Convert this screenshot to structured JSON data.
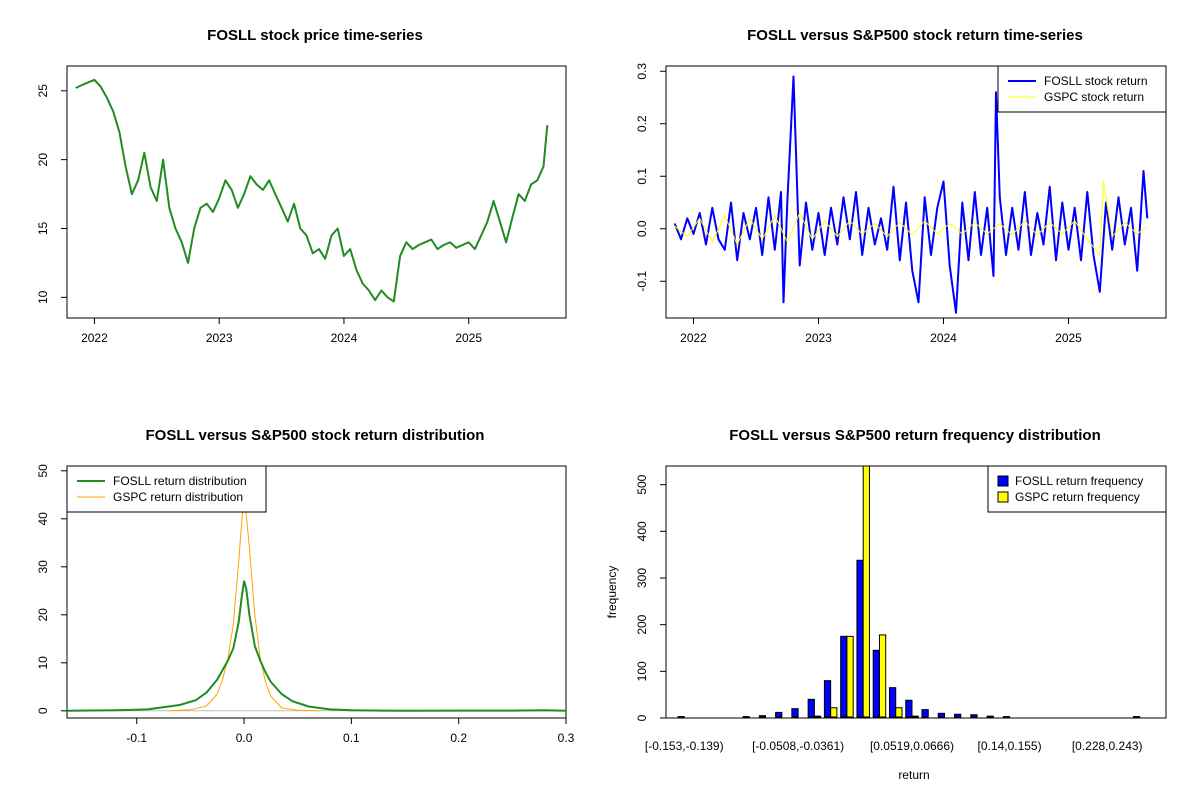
{
  "colors": {
    "fosll_price": "#228B22",
    "fosll_return": "#0000FF",
    "gspc_return": "#FFFF00",
    "fosll_density": "#228B22",
    "gspc_density": "#FFA500",
    "fosll_bar": "#0000FF",
    "gspc_bar": "#FFFF00"
  },
  "chart_data": [
    {
      "type": "line",
      "title": "FOSLL stock price time-series",
      "xlabel": "",
      "ylabel": "",
      "xlim": [
        2021.78,
        2025.78
      ],
      "ylim": [
        8.5,
        26.8
      ],
      "x_ticks": [
        2022,
        2023,
        2024,
        2025
      ],
      "x_tick_labels": [
        "2022",
        "2023",
        "2024",
        "2025"
      ],
      "y_ticks": [
        10,
        15,
        20,
        25
      ],
      "y_tick_labels": [
        "10",
        "15",
        "20",
        "25"
      ],
      "series": [
        {
          "x": [
            2021.85,
            2021.92,
            2022.0,
            2022.05,
            2022.1,
            2022.15,
            2022.2,
            2022.25,
            2022.3,
            2022.35,
            2022.4,
            2022.45,
            2022.5,
            2022.55,
            2022.6,
            2022.65,
            2022.7,
            2022.75,
            2022.8,
            2022.85,
            2022.9,
            2022.95,
            2023.0,
            2023.05,
            2023.1,
            2023.15,
            2023.2,
            2023.25,
            2023.3,
            2023.35,
            2023.4,
            2023.45,
            2023.5,
            2023.55,
            2023.6,
            2023.65,
            2023.7,
            2023.75,
            2023.8,
            2023.85,
            2023.9,
            2023.95,
            2024.0,
            2024.05,
            2024.1,
            2024.15,
            2024.2,
            2024.25,
            2024.3,
            2024.35,
            2024.4,
            2024.45,
            2024.5,
            2024.55,
            2024.6,
            2024.65,
            2024.7,
            2024.75,
            2024.8,
            2024.85,
            2024.9,
            2024.95,
            2025.0,
            2025.05,
            2025.1,
            2025.15,
            2025.2,
            2025.25,
            2025.3,
            2025.35,
            2025.4,
            2025.45,
            2025.5,
            2025.55,
            2025.6,
            2025.63
          ],
          "values": [
            25.2,
            25.5,
            25.8,
            25.3,
            24.5,
            23.5,
            22.0,
            19.5,
            17.5,
            18.5,
            20.5,
            18.0,
            17.0,
            20.0,
            16.5,
            15.0,
            14.0,
            12.5,
            15.0,
            16.5,
            16.8,
            16.2,
            17.2,
            18.5,
            17.8,
            16.5,
            17.5,
            18.8,
            18.2,
            17.8,
            18.5,
            17.5,
            16.5,
            15.5,
            16.8,
            15.0,
            14.5,
            13.2,
            13.5,
            12.8,
            14.5,
            15.0,
            13.0,
            13.5,
            12.0,
            11.0,
            10.5,
            9.8,
            10.5,
            10.0,
            9.7,
            13.0,
            14.0,
            13.5,
            13.8,
            14.0,
            14.2,
            13.5,
            13.8,
            14.0,
            13.6,
            13.8,
            14.0,
            13.5,
            14.5,
            15.5,
            17.0,
            15.5,
            14.0,
            15.8,
            17.5,
            17.0,
            18.2,
            18.5,
            19.5,
            22.5
          ]
        }
      ]
    },
    {
      "type": "line",
      "title": "FOSLL versus S&P500 stock return time-series",
      "xlabel": "",
      "ylabel": "",
      "xlim": [
        2021.78,
        2025.78
      ],
      "ylim": [
        -0.17,
        0.31
      ],
      "x_ticks": [
        2022,
        2023,
        2024,
        2025
      ],
      "x_tick_labels": [
        "2022",
        "2023",
        "2024",
        "2025"
      ],
      "y_ticks": [
        -0.1,
        0.0,
        0.1,
        0.2,
        0.3
      ],
      "y_tick_labels": [
        "-0.1",
        "0.0",
        "0.1",
        "0.2",
        "0.3"
      ],
      "legend": {
        "position": "top-right",
        "entries": [
          "FOSLL stock return",
          "GSPC stock return"
        ]
      },
      "series": [
        {
          "name": "FOSLL stock return",
          "x": [
            2021.85,
            2021.9,
            2021.95,
            2022.0,
            2022.05,
            2022.1,
            2022.15,
            2022.2,
            2022.25,
            2022.3,
            2022.35,
            2022.4,
            2022.45,
            2022.5,
            2022.55,
            2022.6,
            2022.65,
            2022.7,
            2022.72,
            2022.75,
            2022.8,
            2022.85,
            2022.9,
            2022.95,
            2023.0,
            2023.05,
            2023.1,
            2023.15,
            2023.2,
            2023.25,
            2023.3,
            2023.35,
            2023.4,
            2023.45,
            2023.5,
            2023.55,
            2023.6,
            2023.65,
            2023.7,
            2023.75,
            2023.8,
            2023.85,
            2023.9,
            2023.95,
            2024.0,
            2024.05,
            2024.1,
            2024.15,
            2024.2,
            2024.25,
            2024.3,
            2024.35,
            2024.4,
            2024.42,
            2024.45,
            2024.5,
            2024.55,
            2024.6,
            2024.65,
            2024.7,
            2024.75,
            2024.8,
            2024.85,
            2024.9,
            2024.95,
            2025.0,
            2025.05,
            2025.1,
            2025.15,
            2025.2,
            2025.25,
            2025.3,
            2025.35,
            2025.4,
            2025.45,
            2025.5,
            2025.55,
            2025.6,
            2025.63
          ],
          "values": [
            0.01,
            -0.02,
            0.02,
            -0.01,
            0.03,
            -0.03,
            0.04,
            -0.02,
            -0.04,
            0.05,
            -0.06,
            0.03,
            -0.02,
            0.04,
            -0.05,
            0.06,
            -0.04,
            0.07,
            -0.14,
            0.05,
            0.29,
            -0.07,
            0.05,
            -0.04,
            0.03,
            -0.05,
            0.04,
            -0.03,
            0.06,
            -0.02,
            0.07,
            -0.05,
            0.04,
            -0.03,
            0.02,
            -0.04,
            0.08,
            -0.06,
            0.05,
            -0.08,
            -0.14,
            0.06,
            -0.05,
            0.04,
            0.09,
            -0.07,
            -0.16,
            0.05,
            -0.06,
            0.07,
            -0.05,
            0.04,
            -0.09,
            0.26,
            0.06,
            -0.05,
            0.04,
            -0.04,
            0.07,
            -0.05,
            0.03,
            -0.03,
            0.08,
            -0.06,
            0.05,
            -0.04,
            0.04,
            -0.06,
            0.07,
            -0.05,
            -0.12,
            0.05,
            -0.04,
            0.06,
            -0.03,
            0.04,
            -0.08,
            0.11,
            0.02
          ]
        },
        {
          "name": "GSPC stock return",
          "x": [
            2021.85,
            2021.95,
            2022.05,
            2022.15,
            2022.25,
            2022.35,
            2022.45,
            2022.55,
            2022.65,
            2022.75,
            2022.85,
            2022.95,
            2023.05,
            2023.15,
            2023.25,
            2023.35,
            2023.45,
            2023.55,
            2023.65,
            2023.75,
            2023.85,
            2023.95,
            2024.05,
            2024.15,
            2024.25,
            2024.35,
            2024.45,
            2024.55,
            2024.65,
            2024.75,
            2024.85,
            2024.95,
            2025.05,
            2025.15,
            2025.25,
            2025.28,
            2025.35,
            2025.45,
            2025.55,
            2025.63
          ],
          "values": [
            0.005,
            -0.015,
            0.02,
            -0.025,
            0.025,
            -0.03,
            0.02,
            -0.02,
            0.025,
            -0.025,
            0.03,
            -0.02,
            0.015,
            -0.015,
            0.015,
            -0.01,
            0.01,
            -0.015,
            0.012,
            -0.012,
            0.015,
            -0.01,
            0.01,
            -0.01,
            0.012,
            -0.01,
            0.01,
            -0.012,
            0.015,
            -0.012,
            0.012,
            -0.01,
            0.015,
            -0.02,
            -0.05,
            0.09,
            -0.015,
            0.012,
            -0.01,
            0.005
          ]
        }
      ]
    },
    {
      "type": "line",
      "title": "FOSLL versus S&P500 stock return distribution",
      "xlabel": "",
      "ylabel": "",
      "xlim": [
        -0.165,
        0.3
      ],
      "ylim": [
        -1.5,
        51
      ],
      "x_ticks": [
        -0.1,
        0.0,
        0.1,
        0.2,
        0.3
      ],
      "x_tick_labels": [
        "-0.1",
        "0.0",
        "0.1",
        "0.2",
        "0.3"
      ],
      "y_ticks": [
        0,
        10,
        20,
        30,
        40,
        50
      ],
      "y_tick_labels": [
        "0",
        "10",
        "20",
        "30",
        "40",
        "50"
      ],
      "legend": {
        "position": "top-left",
        "entries": [
          "FOSLL return distribution",
          "GSPC return distribution"
        ]
      },
      "series": [
        {
          "name": "FOSLL return distribution",
          "x": [
            -0.165,
            -0.12,
            -0.09,
            -0.06,
            -0.045,
            -0.035,
            -0.025,
            -0.02,
            -0.015,
            -0.01,
            -0.005,
            -0.002,
            0.0,
            0.002,
            0.005,
            0.01,
            0.015,
            0.02,
            0.025,
            0.035,
            0.045,
            0.06,
            0.08,
            0.1,
            0.15,
            0.2,
            0.25,
            0.28,
            0.3
          ],
          "values": [
            0.0,
            0.1,
            0.3,
            1.2,
            2.2,
            3.8,
            6.5,
            8.5,
            10.5,
            13.0,
            18.5,
            24.0,
            27.0,
            25.5,
            20.0,
            13.5,
            10.5,
            8.0,
            6.0,
            3.5,
            2.0,
            0.9,
            0.3,
            0.1,
            0.0,
            0.05,
            0.05,
            0.1,
            0.0
          ]
        },
        {
          "name": "GSPC return distribution",
          "x": [
            -0.07,
            -0.05,
            -0.035,
            -0.025,
            -0.02,
            -0.015,
            -0.01,
            -0.005,
            -0.002,
            0.0,
            0.002,
            0.005,
            0.01,
            0.015,
            0.02,
            0.025,
            0.035,
            0.05,
            0.07
          ],
          "values": [
            0.0,
            0.2,
            1.0,
            3.5,
            6.5,
            11.0,
            18.0,
            31.0,
            40.0,
            44.0,
            41.0,
            34.0,
            20.0,
            11.0,
            6.0,
            3.0,
            0.6,
            0.1,
            0.0
          ]
        }
      ]
    },
    {
      "type": "bar",
      "title": "FOSLL versus S&P500 return frequency distribution",
      "xlabel": "return",
      "ylabel": "frequency",
      "ylim": [
        0,
        540
      ],
      "y_ticks": [
        0,
        100,
        200,
        300,
        400,
        500
      ],
      "y_tick_labels": [
        "0",
        "100",
        "200",
        "300",
        "400",
        "500"
      ],
      "x_tick_labels": [
        {
          "bin": 0,
          "label": "[-0.153,-0.139)"
        },
        {
          "bin": 7,
          "label": "[-0.0508,-0.0361)"
        },
        {
          "bin": 14,
          "label": "[0.0519,0.0666)"
        },
        {
          "bin": 20,
          "label": "[0.14,0.155)"
        },
        {
          "bin": 26,
          "label": "[0.228,0.243)"
        }
      ],
      "legend": {
        "position": "top-right",
        "entries": [
          "FOSLL return frequency",
          "GSPC return frequency"
        ]
      },
      "series": [
        {
          "name": "FOSLL return frequency",
          "values": [
            3,
            2,
            2,
            2,
            3,
            5,
            12,
            20,
            40,
            80,
            175,
            338,
            145,
            65,
            38,
            18,
            10,
            8,
            7,
            4,
            3,
            2,
            2,
            2,
            2,
            2,
            2,
            2,
            3,
            2
          ]
        },
        {
          "name": "GSPC return frequency",
          "values": [
            0,
            0,
            0,
            0,
            0,
            0,
            0,
            2,
            4,
            22,
            175,
            540,
            178,
            22,
            4,
            2,
            0,
            0,
            0,
            0,
            0,
            0,
            0,
            0,
            0,
            0,
            0,
            0,
            0,
            0
          ]
        }
      ]
    }
  ]
}
